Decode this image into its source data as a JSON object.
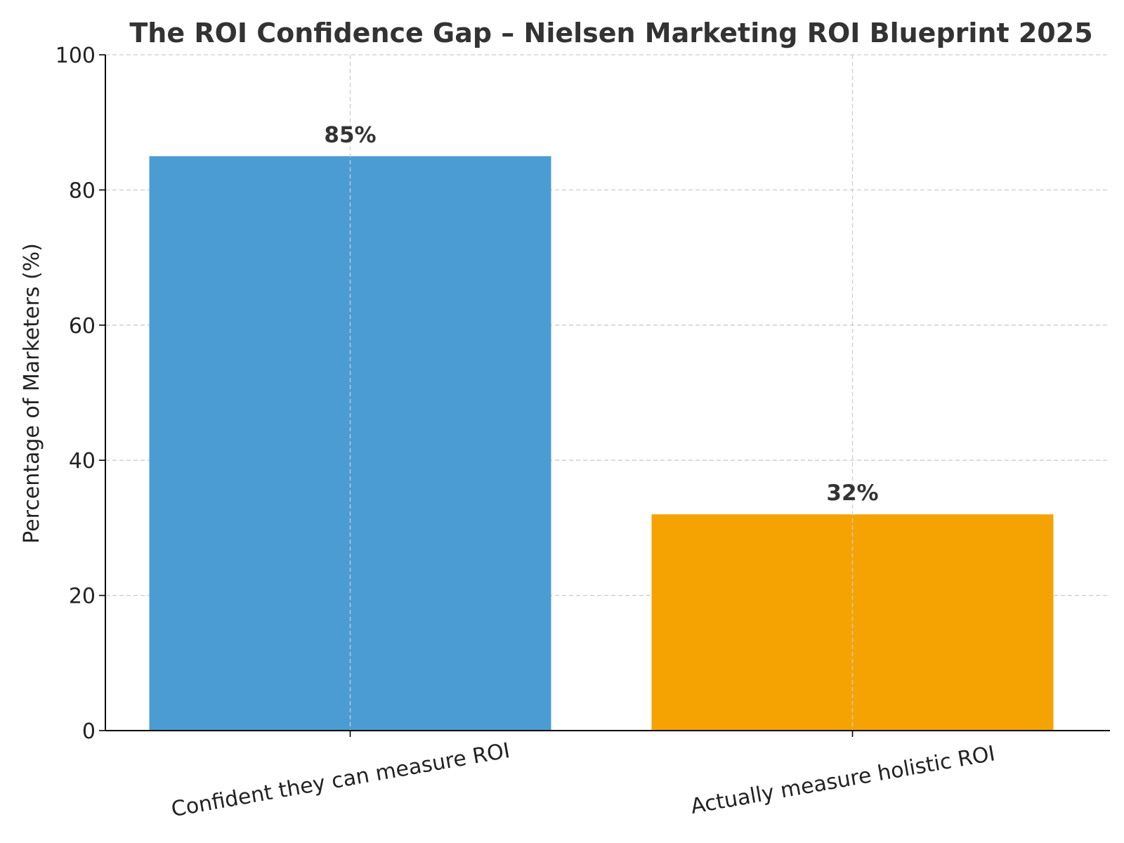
{
  "chart_data": {
    "type": "bar",
    "title": "The ROI Confidence Gap – Nielsen Marketing ROI Blueprint 2025",
    "xlabel": "",
    "ylabel": "Percentage of Marketers (%)",
    "categories": [
      "Confident they can measure ROI",
      "Actually measure holistic ROI"
    ],
    "values": [
      85,
      32
    ],
    "value_labels": [
      "85%",
      "32%"
    ],
    "colors": [
      "#4B9CD3",
      "#F5A302"
    ],
    "ylim": [
      0,
      100
    ],
    "yticks": [
      0,
      20,
      40,
      60,
      80,
      100
    ],
    "ytick_labels": [
      "0",
      "20",
      "40",
      "60",
      "80",
      "100"
    ],
    "grid": true,
    "legend": false
  }
}
